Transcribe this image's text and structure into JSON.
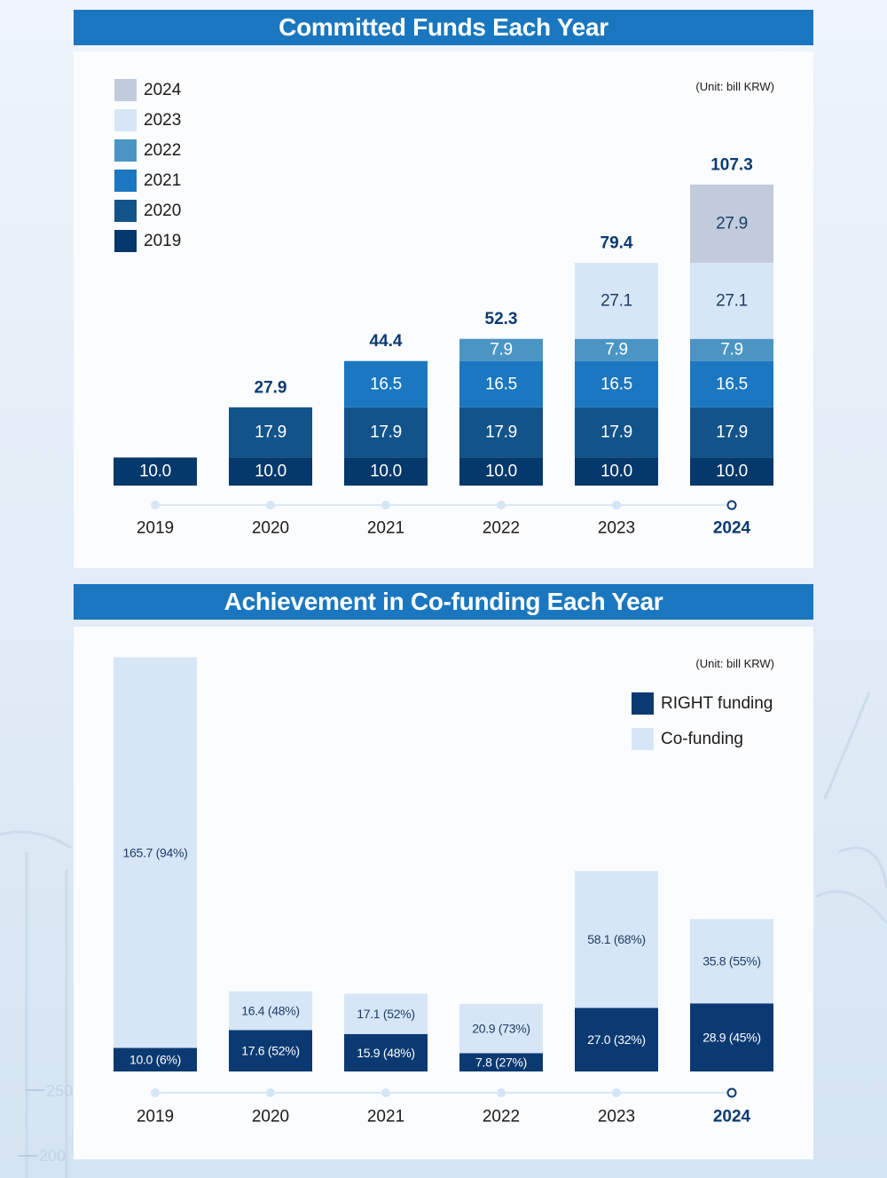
{
  "colors": {
    "y2019": "#05386b",
    "y2020": "#12548a",
    "y2021": "#1b77c0",
    "y2022": "#4a95c4",
    "y2023": "#d6e6f7",
    "y2024": "#c2cbdc",
    "right_funding": "#0b3a72",
    "co_funding": "#d6e6f7",
    "total_label": "#0b3a72",
    "title_bar": "#1a77bf"
  },
  "committed": {
    "title": "Committed Funds Each Year",
    "unit": "(Unit: bill KRW)",
    "legend": [
      "2024",
      "2023",
      "2022",
      "2021",
      "2020",
      "2019"
    ]
  },
  "cofunding": {
    "title": "Achievement in Co-funding Each Year",
    "unit": "(Unit: bill KRW)",
    "legend": [
      "RIGHT funding",
      "Co-funding"
    ]
  },
  "chart_data": [
    {
      "type": "bar",
      "stacked": true,
      "title": "Committed Funds Each Year",
      "unit": "(Unit: bill KRW)",
      "categories": [
        "2019",
        "2020",
        "2021",
        "2022",
        "2023",
        "2024"
      ],
      "highlight_category": "2024",
      "series": [
        {
          "name": "2019",
          "values": [
            10.0,
            10.0,
            10.0,
            10.0,
            10.0,
            10.0
          ],
          "labels": [
            "10.0",
            "10.0",
            "10.0",
            "10.0",
            "10.0",
            "10.0"
          ]
        },
        {
          "name": "2020",
          "values": [
            0,
            17.9,
            17.9,
            17.9,
            17.9,
            17.9
          ],
          "labels": [
            "",
            "17.9",
            "17.9",
            "17.9",
            "17.9",
            "17.9"
          ]
        },
        {
          "name": "2021",
          "values": [
            0,
            0,
            16.5,
            16.5,
            16.5,
            16.5
          ],
          "labels": [
            "",
            "",
            "16.5",
            "16.5",
            "16.5",
            "16.5"
          ]
        },
        {
          "name": "2022",
          "values": [
            0,
            0,
            0,
            7.9,
            7.9,
            7.9
          ],
          "labels": [
            "",
            "",
            "",
            "7.9",
            "7.9",
            "7.9"
          ]
        },
        {
          "name": "2023",
          "values": [
            0,
            0,
            0,
            0,
            27.1,
            27.1
          ],
          "labels": [
            "",
            "",
            "",
            "",
            "27.1",
            "27.1"
          ]
        },
        {
          "name": "2024",
          "values": [
            0,
            0,
            0,
            0,
            0,
            27.9
          ],
          "labels": [
            "",
            "",
            "",
            "",
            "",
            "27.9"
          ]
        }
      ],
      "totals": [
        "",
        "27.9",
        "44.4",
        "52.3",
        "79.4",
        "107.3"
      ],
      "legend_position": "top-left",
      "grid": false
    },
    {
      "type": "bar",
      "stacked": true,
      "title": "Achievement in Co-funding Each Year",
      "unit": "(Unit: bill KRW)",
      "categories": [
        "2019",
        "2020",
        "2021",
        "2022",
        "2023",
        "2024"
      ],
      "highlight_category": "2024",
      "series": [
        {
          "name": "RIGHT funding",
          "values": [
            10.0,
            17.6,
            15.9,
            7.8,
            27.0,
            28.9
          ],
          "labels": [
            "10.0 (6%)",
            "17.6 (52%)",
            "15.9 (48%)",
            "7.8 (27%)",
            "27.0 (32%)",
            "28.9 (45%)"
          ]
        },
        {
          "name": "Co-funding",
          "values": [
            165.7,
            16.4,
            17.1,
            20.9,
            58.1,
            35.8
          ],
          "labels": [
            "165.7 (94%)",
            "16.4 (48%)",
            "17.1 (52%)",
            "20.9 (73%)",
            "58.1 (68%)",
            "35.8 (55%)"
          ]
        }
      ],
      "legend_position": "top-right",
      "grid": false
    }
  ]
}
